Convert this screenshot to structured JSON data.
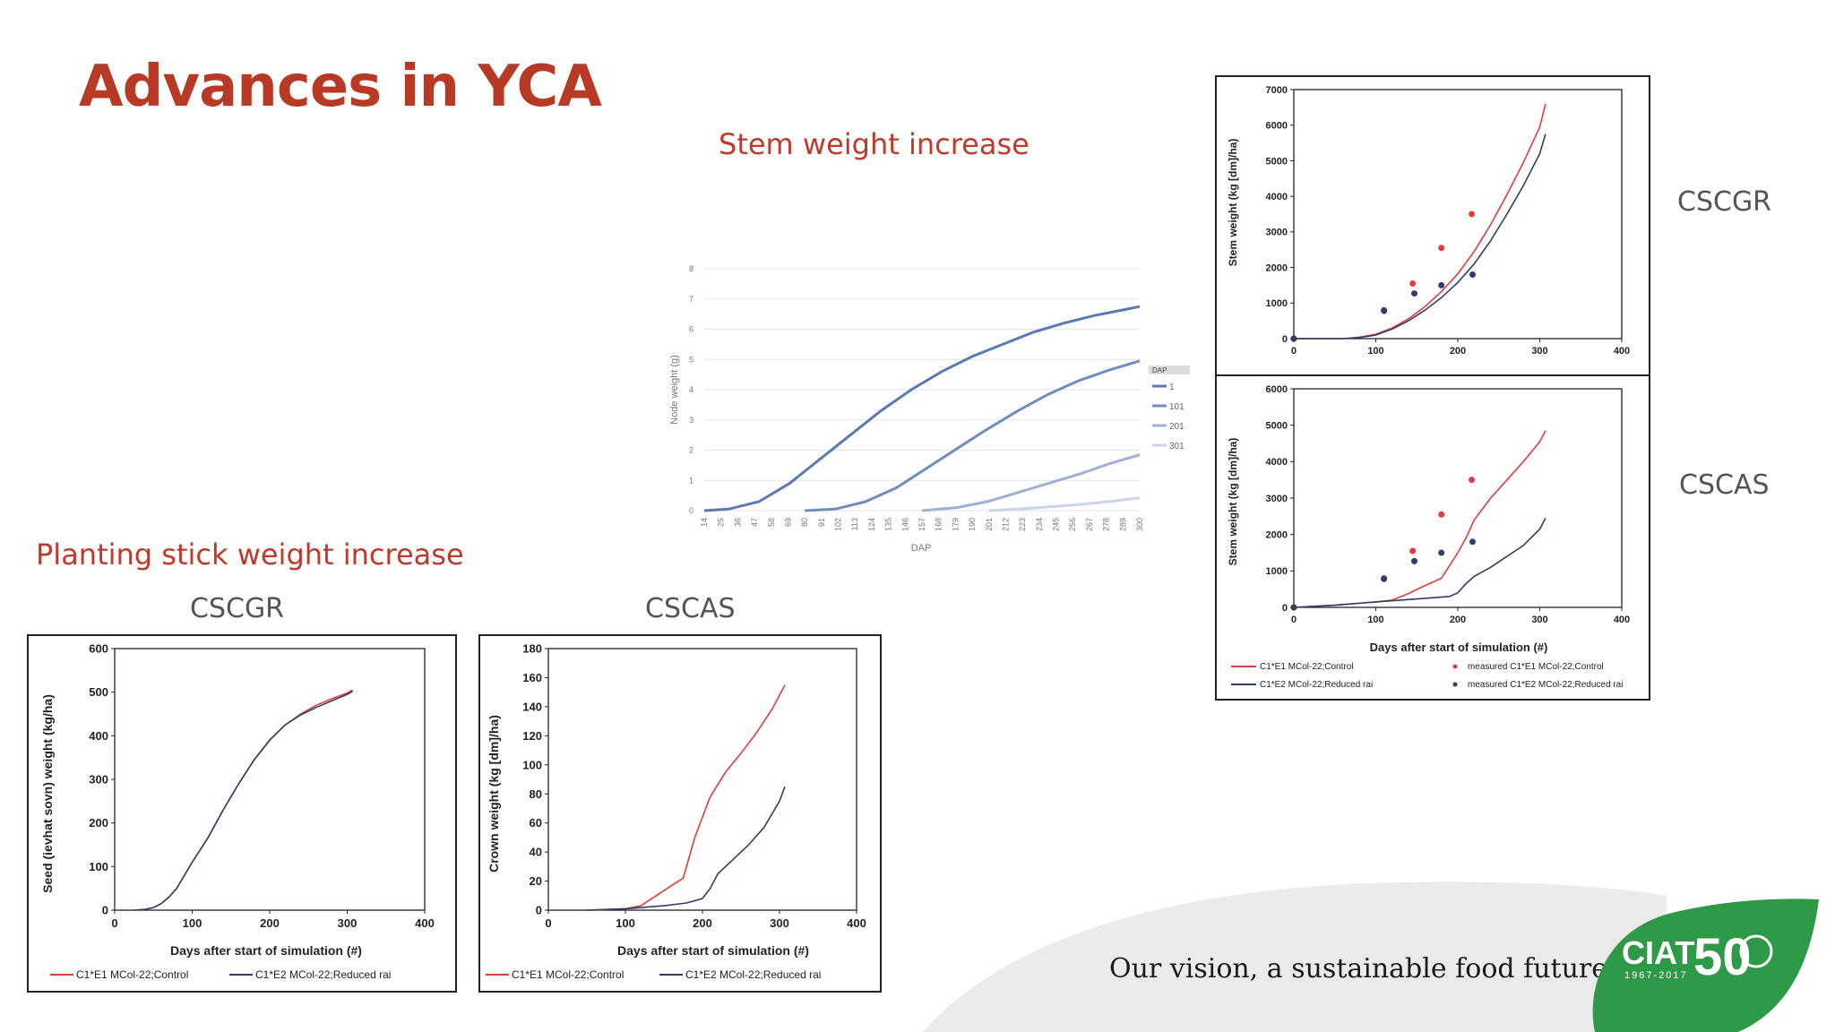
{
  "slide": {
    "title": "Advances in YCA",
    "stem_heading": "Stem weight increase",
    "planting_heading": "Planting stick weight increase",
    "label_cscgr_small": "CSCGR",
    "label_cscas_small": "CSCAS",
    "label_cscgr_right": "CSCGR",
    "label_cscas_right": "CSCAS",
    "tagline": "Our vision, a sustainable food future",
    "logo_text": "CIAT",
    "logo_fifty": "50",
    "logo_years": "1967-2017",
    "colors": {
      "title": "#b83a24",
      "accent_red": "#e8393b",
      "navy": "#2e3e6c",
      "logo_green": "#2e9a47"
    }
  },
  "chart_data": [
    {
      "id": "node-weight",
      "type": "line",
      "title": "",
      "xlabel": "DAP",
      "ylabel": "Node weight (g)",
      "ylim": [
        0,
        8
      ],
      "yticks": [
        0,
        1,
        2,
        3,
        4,
        5,
        6,
        7,
        8
      ],
      "x_ticks": [
        "14",
        "25",
        "36",
        "47",
        "58",
        "69",
        "80",
        "91",
        "102",
        "113",
        "124",
        "135",
        "146",
        "157",
        "168",
        "179",
        "190",
        "201",
        "212",
        "223",
        "234",
        "245",
        "256",
        "267",
        "278",
        "289",
        "300"
      ],
      "legend_title": "DAP",
      "series": [
        {
          "name": "1",
          "color": "#5b79b4",
          "x": [
            14,
            30,
            50,
            70,
            90,
            110,
            130,
            150,
            170,
            190,
            210,
            230,
            250,
            270,
            290,
            300
          ],
          "values": [
            0,
            0.05,
            0.3,
            0.9,
            1.7,
            2.5,
            3.3,
            4.0,
            4.6,
            5.1,
            5.5,
            5.9,
            6.2,
            6.45,
            6.65,
            6.75
          ]
        },
        {
          "name": "101",
          "color": "#6f8cc2",
          "x": [
            80,
            100,
            120,
            140,
            160,
            180,
            200,
            220,
            240,
            260,
            280,
            300
          ],
          "values": [
            0,
            0.05,
            0.3,
            0.75,
            1.4,
            2.05,
            2.7,
            3.3,
            3.85,
            4.3,
            4.65,
            4.95
          ]
        },
        {
          "name": "201",
          "color": "#9db1d8",
          "x": [
            157,
            180,
            200,
            220,
            240,
            260,
            280,
            300
          ],
          "values": [
            0,
            0.1,
            0.3,
            0.6,
            0.9,
            1.2,
            1.55,
            1.85
          ]
        },
        {
          "name": "301",
          "color": "#c9d4ea",
          "x": [
            201,
            220,
            240,
            260,
            280,
            300
          ],
          "values": [
            0,
            0.05,
            0.12,
            0.2,
            0.3,
            0.42
          ]
        }
      ]
    },
    {
      "id": "stem-cscgr",
      "type": "line",
      "title": "",
      "xlabel": "",
      "ylabel": "Stem weight (kg [dm]/ha)",
      "xlim": [
        0,
        400
      ],
      "ylim": [
        0,
        7000
      ],
      "xticks": [
        0,
        100,
        200,
        300,
        400
      ],
      "yticks": [
        0,
        1000,
        2000,
        3000,
        4000,
        5000,
        6000,
        7000
      ],
      "series": [
        {
          "name": "C1*E1 MCol-22;Control",
          "color": "#e8393b",
          "x": [
            0,
            60,
            80,
            100,
            120,
            140,
            160,
            180,
            200,
            220,
            240,
            260,
            280,
            300,
            307
          ],
          "values": [
            0,
            0,
            40,
            120,
            300,
            560,
            900,
            1320,
            1820,
            2450,
            3200,
            4050,
            4950,
            5950,
            6600
          ]
        },
        {
          "name": "C1*E2 MCol-22;Reduced rai",
          "color": "#2e3e6c",
          "x": [
            0,
            60,
            80,
            100,
            120,
            140,
            160,
            180,
            200,
            220,
            240,
            260,
            280,
            300,
            307
          ],
          "values": [
            0,
            0,
            30,
            100,
            270,
            500,
            800,
            1150,
            1580,
            2100,
            2750,
            3500,
            4300,
            5200,
            5750
          ]
        }
      ],
      "points": [
        {
          "name": "measured C1*E1 MCol-22;Control",
          "color": "#e8393b",
          "x": [
            0,
            110,
            145,
            180,
            217
          ],
          "values": [
            0,
            800,
            1550,
            2550,
            3500
          ]
        },
        {
          "name": "measured C1*E2 MCol-22;Reduced rai",
          "color": "#2e3e6c",
          "x": [
            0,
            110,
            147,
            180,
            218
          ],
          "values": [
            0,
            780,
            1270,
            1500,
            1800
          ]
        }
      ]
    },
    {
      "id": "stem-cscas",
      "type": "line",
      "title": "",
      "xlabel": "Days after start of simulation (#)",
      "ylabel": "Stem weight (kg [dm]/ha)",
      "xlim": [
        0,
        400
      ],
      "ylim": [
        0,
        6000
      ],
      "xticks": [
        0,
        100,
        200,
        300,
        400
      ],
      "yticks": [
        0,
        1000,
        2000,
        3000,
        4000,
        5000,
        6000
      ],
      "series": [
        {
          "name": "C1*E1 MCol-22;Control",
          "color": "#e8393b",
          "x": [
            0,
            50,
            100,
            120,
            140,
            160,
            180,
            200,
            210,
            220,
            240,
            260,
            280,
            300,
            307
          ],
          "values": [
            0,
            60,
            150,
            200,
            380,
            600,
            800,
            1500,
            1900,
            2400,
            3000,
            3500,
            4000,
            4550,
            4850
          ]
        },
        {
          "name": "C1*E2 MCol-22;Reduced rai",
          "color": "#2e3e6c",
          "x": [
            0,
            50,
            100,
            150,
            190,
            200,
            210,
            220,
            240,
            260,
            280,
            300,
            307
          ],
          "values": [
            0,
            60,
            150,
            230,
            300,
            400,
            650,
            850,
            1100,
            1400,
            1700,
            2150,
            2450
          ]
        }
      ],
      "points": [
        {
          "name": "measured C1*E1 MCol-22;Control",
          "color": "#e8393b",
          "x": [
            0,
            110,
            145,
            180,
            217
          ],
          "values": [
            0,
            800,
            1550,
            2550,
            3500
          ]
        },
        {
          "name": "measured C1*E2 MCol-22;Reduced rai",
          "color": "#2e3e6c",
          "x": [
            0,
            110,
            147,
            180,
            218
          ],
          "values": [
            0,
            780,
            1270,
            1500,
            1800
          ]
        }
      ],
      "legend": [
        "C1*E1 MCol-22;Control",
        "measured C1*E1 MCol-22;Control",
        "C1*E2 MCol-22;Reduced rai",
        "measured C1*E2 MCol-22;Reduced rai"
      ]
    },
    {
      "id": "seed-cscgr",
      "type": "line",
      "title": "",
      "xlabel": "Days after start of simulation (#)",
      "ylabel": "Seed (ievhat sovn) weight (kg/ha)",
      "xlim": [
        0,
        400
      ],
      "ylim": [
        0,
        600
      ],
      "xticks": [
        0,
        100,
        200,
        300,
        400
      ],
      "yticks": [
        0,
        100,
        200,
        300,
        400,
        500,
        600
      ],
      "series": [
        {
          "name": "C1*E1 MCol-22;Control",
          "color": "#e8393b",
          "x": [
            25,
            40,
            50,
            60,
            70,
            80,
            100,
            120,
            140,
            160,
            180,
            200,
            220,
            240,
            260,
            280,
            300,
            307
          ],
          "values": [
            0,
            2,
            6,
            15,
            30,
            50,
            110,
            165,
            230,
            290,
            345,
            390,
            425,
            450,
            470,
            485,
            498,
            505
          ]
        },
        {
          "name": "C1*E2 MCol-22;Reduced rai",
          "color": "#2e3e6c",
          "x": [
            25,
            40,
            50,
            60,
            70,
            80,
            100,
            120,
            140,
            160,
            180,
            200,
            220,
            240,
            260,
            280,
            300,
            307
          ],
          "values": [
            0,
            2,
            6,
            15,
            30,
            50,
            110,
            165,
            230,
            290,
            345,
            390,
            425,
            448,
            465,
            480,
            495,
            502
          ]
        }
      ],
      "legend": [
        "C1*E1 MCol-22;Control",
        "C1*E2 MCol-22;Reduced rai"
      ]
    },
    {
      "id": "crown-cscas",
      "type": "line",
      "title": "",
      "xlabel": "Days after start of simulation (#)",
      "ylabel": "Crown weight (kg [dm]/ha)",
      "xlim": [
        0,
        400
      ],
      "ylim": [
        0,
        180
      ],
      "xticks": [
        0,
        100,
        200,
        300,
        400
      ],
      "yticks": [
        0,
        20,
        40,
        60,
        80,
        100,
        120,
        140,
        160,
        180
      ],
      "series": [
        {
          "name": "C1*E1 MCol-22;Control",
          "color": "#e8393b",
          "x": [
            50,
            100,
            120,
            140,
            160,
            175,
            190,
            210,
            230,
            250,
            270,
            290,
            307
          ],
          "values": [
            0,
            1,
            3,
            10,
            17,
            22,
            50,
            78,
            95,
            108,
            122,
            138,
            155
          ]
        },
        {
          "name": "C1*E2 MCol-22;Reduced rai",
          "color": "#2e3e6c",
          "x": [
            50,
            100,
            150,
            180,
            200,
            210,
            220,
            240,
            260,
            280,
            300,
            307
          ],
          "values": [
            0,
            1,
            3,
            5,
            8,
            15,
            25,
            35,
            45,
            57,
            75,
            85
          ]
        }
      ],
      "legend": [
        "C1*E1 MCol-22;Control",
        "C1*E2 MCol-22;Reduced rai"
      ]
    }
  ]
}
